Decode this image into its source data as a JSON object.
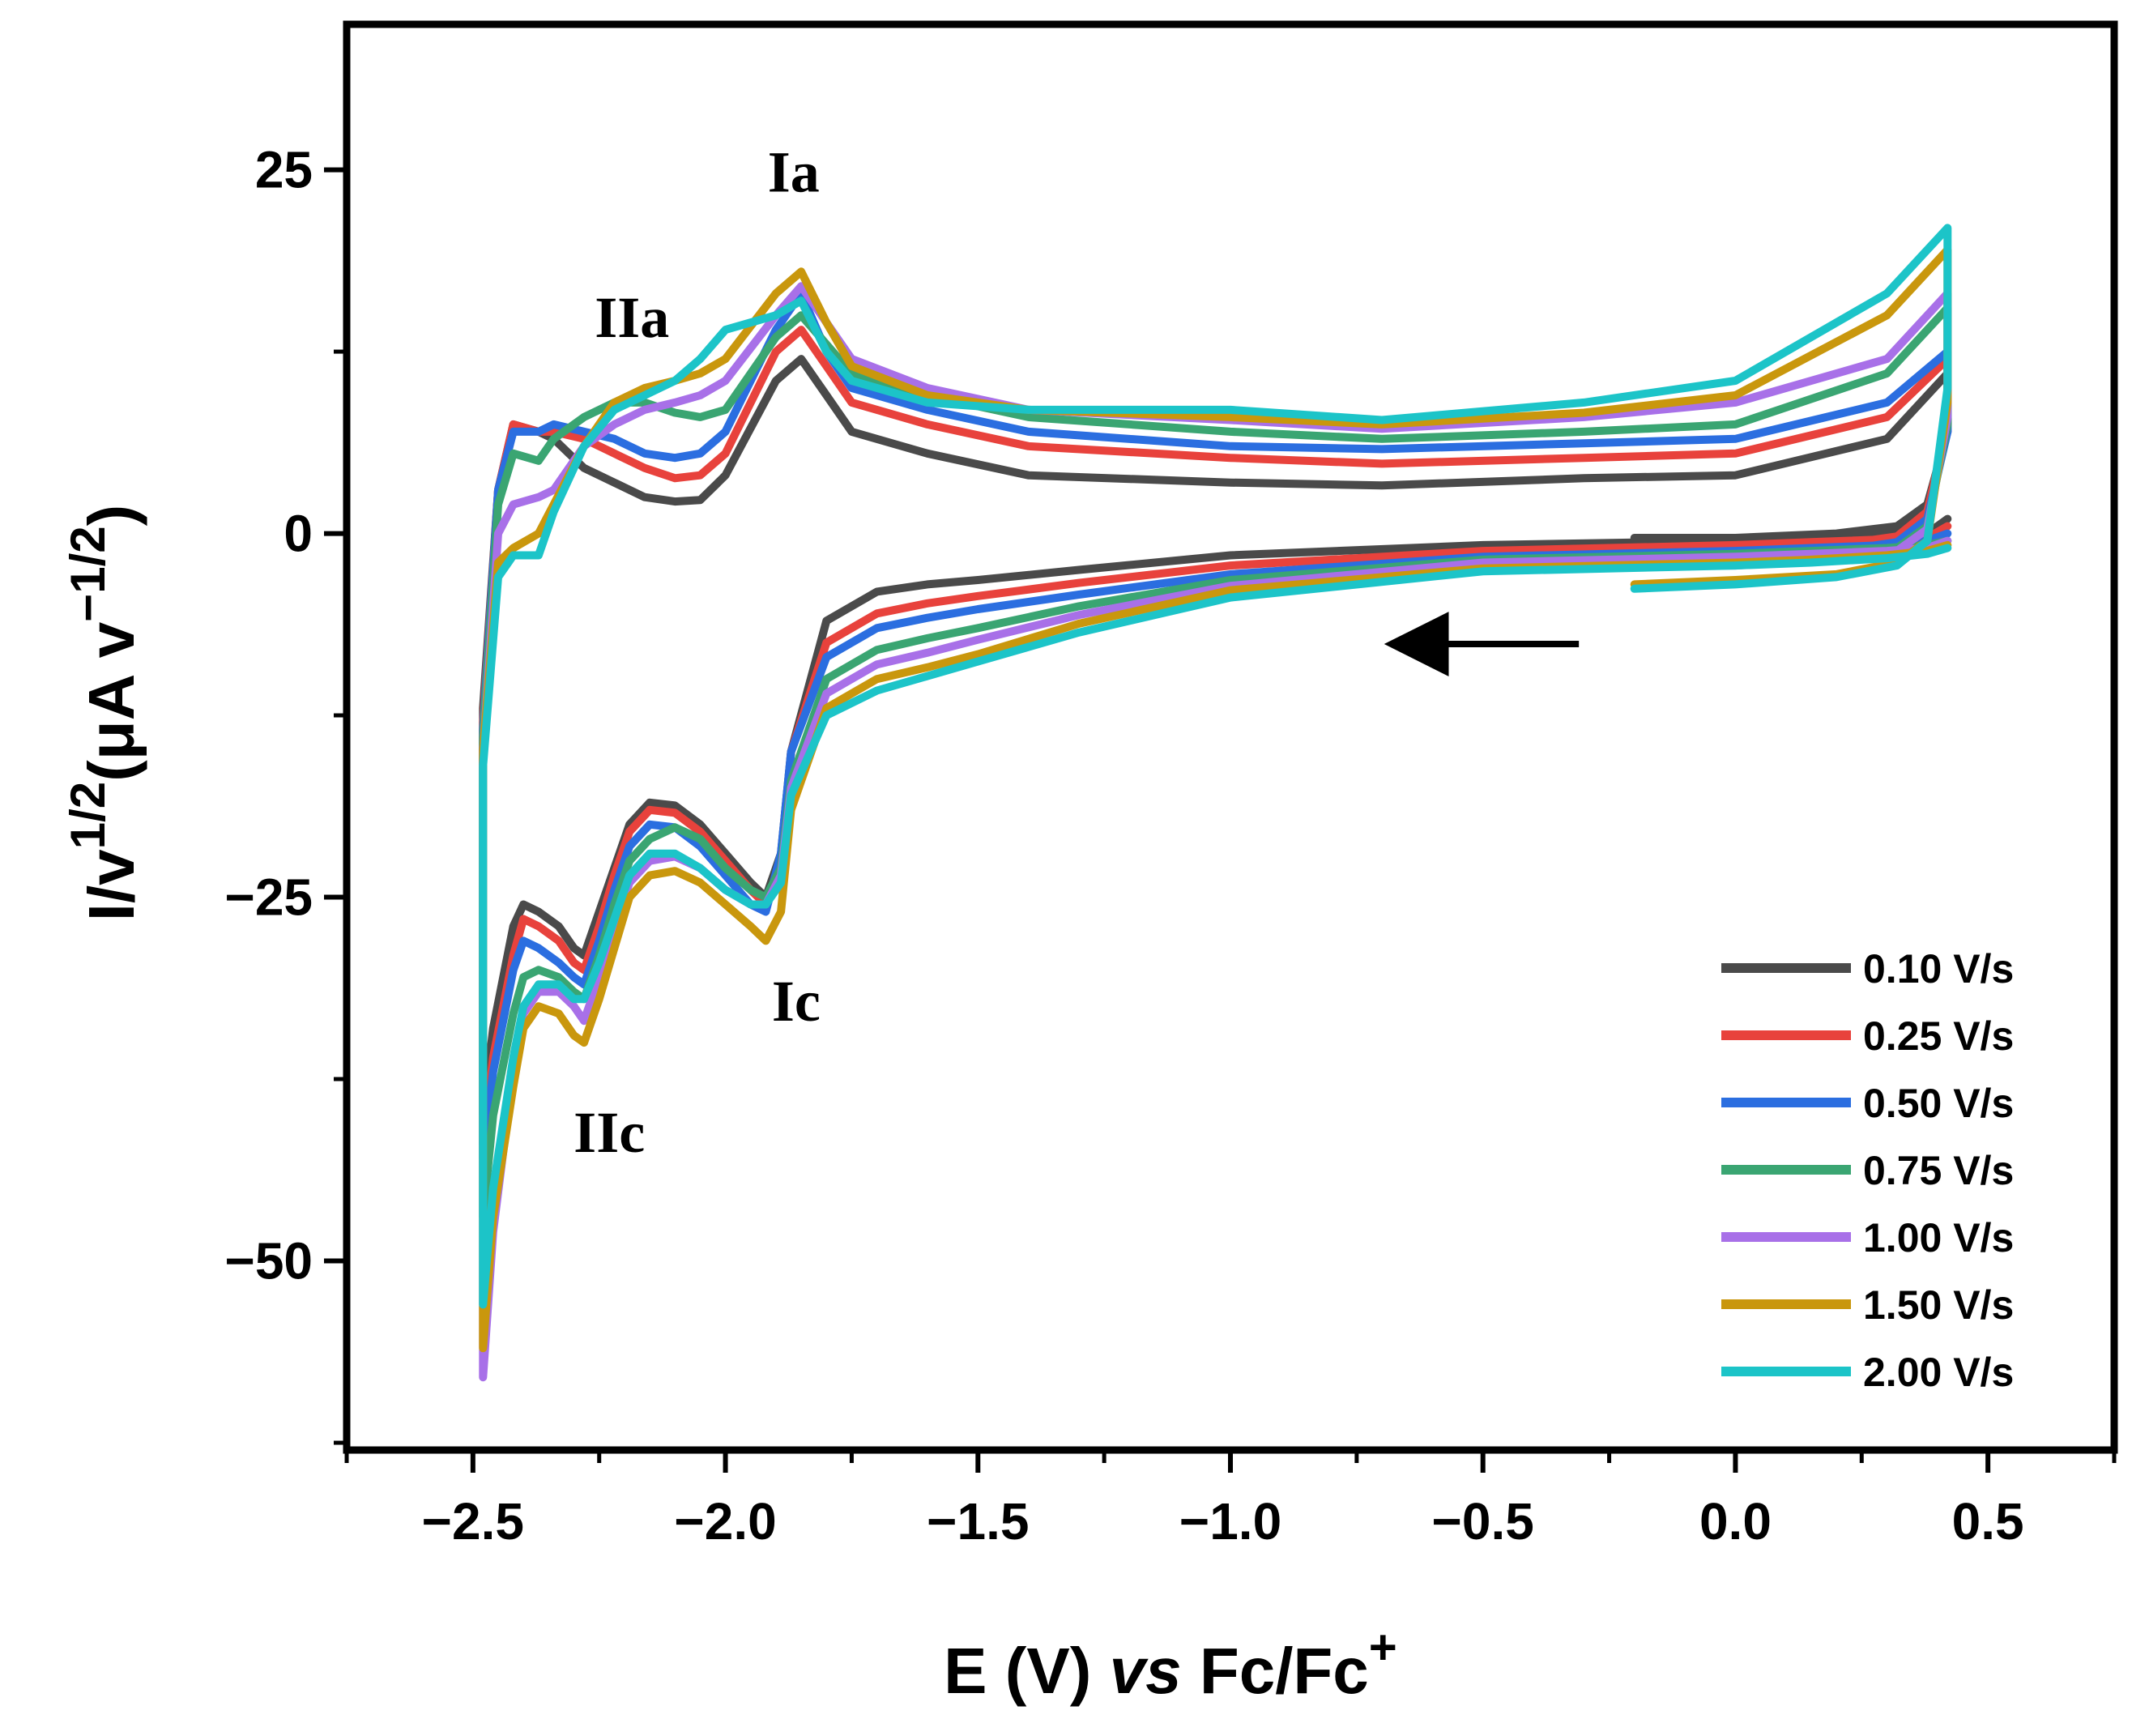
{
  "chart_data": {
    "type": "line",
    "xlabel": "E (V) vs Fc/Fc+",
    "ylabel": "I/v1/2(μA v−1/2)",
    "xlabel_parts": {
      "main": "E (V) ",
      "italic": "vs",
      "rest": " Fc/Fc",
      "sup": "+"
    },
    "ylabel_parts": {
      "a": "I/v",
      "a_sup": "1/2",
      "b": "(μA v",
      "b_sup": "−1/2",
      "c": ")"
    },
    "xlim": [
      -2.75,
      0.75
    ],
    "ylim": [
      -63,
      35
    ],
    "x_ticks": [
      {
        "value": -2.5,
        "label": "−2.5"
      },
      {
        "value": -2.0,
        "label": "−2.0"
      },
      {
        "value": -1.5,
        "label": "−1.5"
      },
      {
        "value": -1.0,
        "label": "−1.0"
      },
      {
        "value": -0.5,
        "label": "−0.5"
      },
      {
        "value": 0.0,
        "label": "0.0"
      },
      {
        "value": 0.5,
        "label": "0.5"
      }
    ],
    "y_ticks": [
      {
        "value": 25,
        "label": "25"
      },
      {
        "value": 0,
        "label": "0"
      },
      {
        "value": -25,
        "label": "−25"
      },
      {
        "value": -50,
        "label": "−50"
      }
    ],
    "x_minor_step": 0.25,
    "y_minor_step": 12.5,
    "legend_position": "bottom-right",
    "annotations": [
      {
        "text": "Ia",
        "x": -1.865,
        "y": 23.5
      },
      {
        "text": "IIa",
        "x": -2.185,
        "y": 13.5
      },
      {
        "text": "Ic",
        "x": -1.86,
        "y": -33.5
      },
      {
        "text": "IIc",
        "x": -2.23,
        "y": -42.5
      }
    ],
    "arrow": {
      "x_from": -0.31,
      "x_to": -0.67,
      "y": -7.6,
      "direction": "left"
    },
    "series": [
      {
        "name": "0.10 V/s",
        "color": "#4a4a4a",
        "x": [
          -0.2,
          0.0,
          0.2,
          0.32,
          0.38,
          0.42,
          0.42,
          0.3,
          0.0,
          -0.3,
          -0.7,
          -1.0,
          -1.4,
          -1.6,
          -1.75,
          -1.8,
          -1.85,
          -1.9,
          -2.0,
          -2.05,
          -2.1,
          -2.16,
          -2.22,
          -2.28,
          -2.34,
          -2.37,
          -2.42,
          -2.45,
          -2.48,
          -2.48,
          -2.46,
          -2.42,
          -2.4,
          -2.37,
          -2.33,
          -2.3,
          -2.28,
          -2.25,
          -2.22,
          -2.19,
          -2.15,
          -2.1,
          -2.05,
          -2.0,
          -1.95,
          -1.92,
          -1.89,
          -1.87,
          -1.8,
          -1.7,
          -1.6,
          -1.5,
          -1.3,
          -1.0,
          -0.5,
          0.0,
          0.15,
          0.3,
          0.38,
          0.42
        ],
        "y": [
          -0.3,
          -0.3,
          0.0,
          0.5,
          2.0,
          7.0,
          11.0,
          6.5,
          4.0,
          3.8,
          3.3,
          3.5,
          4.0,
          5.5,
          7.0,
          9.5,
          12.0,
          10.5,
          4.0,
          2.3,
          2.2,
          2.5,
          3.5,
          4.5,
          6.5,
          7.0,
          7.5,
          3.0,
          -12.0,
          -40.0,
          -34.0,
          -27.0,
          -25.5,
          -26.0,
          -27.0,
          -28.5,
          -29.0,
          -26.0,
          -23.0,
          -20.0,
          -18.5,
          -18.7,
          -20.0,
          -22.0,
          -24.0,
          -25.0,
          -22.0,
          -15.0,
          -6.0,
          -4.0,
          -3.5,
          -3.2,
          -2.5,
          -1.5,
          -0.8,
          -0.5,
          -0.3,
          0.0,
          0.0,
          1.0
        ]
      },
      {
        "name": "0.25 V/s",
        "color": "#e8423c",
        "x": [
          -0.2,
          0.0,
          0.2,
          0.32,
          0.38,
          0.42,
          0.42,
          0.3,
          0.0,
          -0.3,
          -0.7,
          -1.0,
          -1.4,
          -1.6,
          -1.75,
          -1.8,
          -1.85,
          -1.9,
          -2.0,
          -2.05,
          -2.1,
          -2.16,
          -2.22,
          -2.28,
          -2.34,
          -2.37,
          -2.42,
          -2.45,
          -2.48,
          -2.48,
          -2.46,
          -2.42,
          -2.4,
          -2.37,
          -2.33,
          -2.3,
          -2.28,
          -2.25,
          -2.22,
          -2.19,
          -2.15,
          -2.1,
          -2.05,
          -2.0,
          -1.95,
          -1.92,
          -1.89,
          -1.87,
          -1.8,
          -1.7,
          -1.6,
          -1.5,
          -1.3,
          -1.0,
          -0.5,
          0.0,
          0.15,
          0.3,
          0.38,
          0.42
        ],
        "y": [
          -1.0,
          -1.0,
          -0.8,
          -0.2,
          1.5,
          7.5,
          12.0,
          8.0,
          5.5,
          5.2,
          4.8,
          5.2,
          6.0,
          7.5,
          9.0,
          11.5,
          14.0,
          12.5,
          5.5,
          4.0,
          3.8,
          4.5,
          5.5,
          6.5,
          7.0,
          7.0,
          7.5,
          3.0,
          -13.0,
          -42.0,
          -36.0,
          -29.0,
          -26.5,
          -27.0,
          -28.0,
          -29.5,
          -30.0,
          -27.0,
          -23.5,
          -20.5,
          -19.0,
          -19.2,
          -20.5,
          -22.5,
          -24.5,
          -25.5,
          -22.5,
          -15.0,
          -7.5,
          -5.5,
          -4.8,
          -4.3,
          -3.4,
          -2.2,
          -1.2,
          -0.8,
          -0.6,
          -0.4,
          -0.3,
          0.5
        ]
      },
      {
        "name": "0.50 V/s",
        "color": "#2b6ee0",
        "x": [
          -0.2,
          0.0,
          0.2,
          0.32,
          0.38,
          0.42,
          0.42,
          0.3,
          0.0,
          -0.3,
          -0.7,
          -1.0,
          -1.4,
          -1.6,
          -1.75,
          -1.8,
          -1.85,
          -1.9,
          -2.0,
          -2.05,
          -2.1,
          -2.16,
          -2.22,
          -2.28,
          -2.34,
          -2.37,
          -2.42,
          -2.45,
          -2.48,
          -2.48,
          -2.46,
          -2.42,
          -2.4,
          -2.37,
          -2.33,
          -2.3,
          -2.28,
          -2.25,
          -2.22,
          -2.19,
          -2.15,
          -2.1,
          -2.05,
          -2.0,
          -1.95,
          -1.92,
          -1.89,
          -1.87,
          -1.8,
          -1.7,
          -1.6,
          -1.5,
          -1.3,
          -1.0,
          -0.5,
          0.0,
          0.15,
          0.3,
          0.38,
          0.42
        ],
        "y": [
          -1.5,
          -1.5,
          -1.2,
          -0.6,
          1.0,
          7.0,
          12.5,
          9.0,
          6.5,
          6.2,
          5.8,
          6.0,
          7.0,
          8.5,
          10.0,
          12.5,
          16.5,
          14.0,
          7.0,
          5.5,
          5.2,
          5.5,
          6.5,
          7.0,
          7.5,
          7.0,
          7.0,
          3.0,
          -13.5,
          -43.0,
          -37.0,
          -30.0,
          -28.0,
          -28.5,
          -29.5,
          -30.5,
          -31.0,
          -28.0,
          -24.5,
          -21.5,
          -20.0,
          -20.2,
          -21.5,
          -23.5,
          -25.5,
          -26.0,
          -22.0,
          -15.0,
          -8.5,
          -6.5,
          -5.8,
          -5.2,
          -4.2,
          -2.8,
          -1.6,
          -1.2,
          -1.0,
          -0.8,
          -0.5,
          0.0
        ]
      },
      {
        "name": "0.75 V/s",
        "color": "#3aa572",
        "x": [
          -0.2,
          0.0,
          0.2,
          0.32,
          0.38,
          0.42,
          0.42,
          0.3,
          0.0,
          -0.3,
          -0.7,
          -1.0,
          -1.4,
          -1.6,
          -1.75,
          -1.8,
          -1.85,
          -1.9,
          -2.0,
          -2.05,
          -2.1,
          -2.16,
          -2.22,
          -2.28,
          -2.34,
          -2.37,
          -2.42,
          -2.45,
          -2.48,
          -2.48,
          -2.46,
          -2.42,
          -2.4,
          -2.37,
          -2.33,
          -2.3,
          -2.28,
          -2.25,
          -2.22,
          -2.19,
          -2.15,
          -2.1,
          -2.05,
          -2.0,
          -1.95,
          -1.92,
          -1.89,
          -1.87,
          -1.8,
          -1.7,
          -1.6,
          -1.5,
          -1.3,
          -1.0,
          -0.5,
          0.0,
          0.15,
          0.3,
          0.38,
          0.42
        ],
        "y": [
          -2.0,
          -2.0,
          -1.6,
          -1.0,
          0.5,
          7.5,
          15.5,
          11.0,
          7.5,
          7.0,
          6.5,
          7.0,
          8.0,
          9.5,
          11.0,
          13.0,
          15.0,
          13.5,
          8.5,
          8.0,
          8.3,
          9.0,
          9.0,
          8.0,
          6.5,
          5.0,
          5.5,
          2.0,
          -14.0,
          -47.0,
          -40.0,
          -33.0,
          -30.5,
          -30.0,
          -30.5,
          -31.5,
          -32.0,
          -29.0,
          -25.5,
          -22.5,
          -21.0,
          -20.2,
          -21.0,
          -23.0,
          -24.5,
          -25.0,
          -23.0,
          -17.0,
          -10.0,
          -8.0,
          -7.2,
          -6.5,
          -5.0,
          -3.2,
          -1.8,
          -1.4,
          -1.2,
          -1.0,
          -0.8,
          -0.5
        ]
      },
      {
        "name": "1.00 V/s",
        "color": "#a870e8",
        "x": [
          -0.2,
          0.0,
          0.2,
          0.32,
          0.38,
          0.42,
          0.42,
          0.3,
          0.0,
          -0.3,
          -0.7,
          -1.0,
          -1.4,
          -1.6,
          -1.75,
          -1.8,
          -1.85,
          -1.9,
          -2.0,
          -2.05,
          -2.1,
          -2.16,
          -2.22,
          -2.28,
          -2.34,
          -2.37,
          -2.42,
          -2.45,
          -2.48,
          -2.48,
          -2.46,
          -2.42,
          -2.4,
          -2.37,
          -2.33,
          -2.3,
          -2.28,
          -2.25,
          -2.22,
          -2.19,
          -2.15,
          -2.1,
          -2.05,
          -2.0,
          -1.95,
          -1.92,
          -1.89,
          -1.87,
          -1.8,
          -1.7,
          -1.6,
          -1.5,
          -1.3,
          -1.0,
          -0.5,
          0.0,
          0.15,
          0.3,
          0.38,
          0.42
        ],
        "y": [
          -2.2,
          -2.2,
          -1.8,
          -1.2,
          0.3,
          8.0,
          16.5,
          12.0,
          9.0,
          8.0,
          7.2,
          7.8,
          8.5,
          10.0,
          12.0,
          14.5,
          17.0,
          15.0,
          10.5,
          9.5,
          9.0,
          8.5,
          7.5,
          6.0,
          3.0,
          2.5,
          2.0,
          0.0,
          -15.0,
          -58.0,
          -48.0,
          -37.0,
          -33.0,
          -31.5,
          -31.5,
          -32.5,
          -33.5,
          -30.5,
          -27.0,
          -24.0,
          -22.5,
          -22.2,
          -23.0,
          -24.5,
          -25.5,
          -25.5,
          -23.5,
          -17.5,
          -11.0,
          -9.0,
          -8.2,
          -7.3,
          -5.6,
          -3.6,
          -2.0,
          -1.6,
          -1.4,
          -1.2,
          -1.0,
          -0.5
        ]
      },
      {
        "name": "1.50 V/s",
        "color": "#c9970d",
        "x": [
          -0.2,
          0.0,
          0.2,
          0.32,
          0.38,
          0.42,
          0.42,
          0.3,
          0.0,
          -0.3,
          -0.7,
          -1.0,
          -1.4,
          -1.6,
          -1.75,
          -1.8,
          -1.85,
          -1.9,
          -2.0,
          -2.05,
          -2.1,
          -2.16,
          -2.22,
          -2.28,
          -2.34,
          -2.37,
          -2.42,
          -2.45,
          -2.48,
          -2.48,
          -2.46,
          -2.42,
          -2.4,
          -2.37,
          -2.33,
          -2.3,
          -2.28,
          -2.25,
          -2.22,
          -2.19,
          -2.15,
          -2.1,
          -2.05,
          -2.0,
          -1.95,
          -1.92,
          -1.89,
          -1.87,
          -1.8,
          -1.7,
          -1.6,
          -1.5,
          -1.3,
          -1.0,
          -0.5,
          0.0,
          0.15,
          0.3,
          0.38,
          0.42
        ],
        "y": [
          -3.5,
          -3.2,
          -2.8,
          -2.0,
          -0.5,
          9.0,
          19.5,
          15.0,
          9.5,
          8.3,
          7.5,
          8.0,
          8.5,
          9.5,
          11.5,
          14.5,
          18.0,
          16.5,
          12.0,
          11.0,
          10.5,
          10.0,
          9.0,
          6.0,
          2.0,
          0.0,
          -1.0,
          -2.0,
          -15.0,
          -56.0,
          -47.0,
          -38.0,
          -34.0,
          -32.5,
          -33.0,
          -34.5,
          -35.0,
          -32.0,
          -28.5,
          -25.0,
          -23.5,
          -23.2,
          -24.0,
          -25.5,
          -27.0,
          -28.0,
          -26.0,
          -19.0,
          -12.0,
          -10.0,
          -9.2,
          -8.3,
          -6.2,
          -3.9,
          -2.4,
          -2.0,
          -1.8,
          -1.5,
          -1.2,
          -0.8
        ]
      },
      {
        "name": "2.00 V/s",
        "color": "#1cc4c8",
        "x": [
          -0.2,
          0.0,
          0.2,
          0.32,
          0.38,
          0.42,
          0.42,
          0.3,
          0.0,
          -0.3,
          -0.7,
          -1.0,
          -1.4,
          -1.6,
          -1.75,
          -1.8,
          -1.85,
          -1.9,
          -2.0,
          -2.05,
          -2.1,
          -2.16,
          -2.22,
          -2.28,
          -2.34,
          -2.37,
          -2.42,
          -2.45,
          -2.48,
          -2.48,
          -2.46,
          -2.42,
          -2.4,
          -2.37,
          -2.33,
          -2.3,
          -2.28,
          -2.25,
          -2.22,
          -2.19,
          -2.15,
          -2.1,
          -2.05,
          -2.0,
          -1.95,
          -1.92,
          -1.89,
          -1.87,
          -1.8,
          -1.7,
          -1.6,
          -1.5,
          -1.3,
          -1.0,
          -0.5,
          0.0,
          0.15,
          0.3,
          0.38,
          0.42
        ],
        "y": [
          -3.8,
          -3.5,
          -3.0,
          -2.2,
          -0.5,
          10.0,
          21.0,
          16.5,
          10.5,
          9.0,
          7.8,
          8.5,
          8.5,
          9.0,
          10.5,
          12.5,
          16.0,
          15.0,
          14.0,
          12.0,
          10.5,
          9.5,
          8.5,
          6.0,
          1.5,
          -1.5,
          -1.5,
          -3.0,
          -16.0,
          -53.0,
          -45.0,
          -36.0,
          -32.5,
          -31.0,
          -31.0,
          -32.0,
          -32.0,
          -29.5,
          -26.5,
          -23.5,
          -22.0,
          -22.0,
          -23.0,
          -24.5,
          -25.5,
          -25.5,
          -24.0,
          -18.0,
          -12.5,
          -10.8,
          -9.8,
          -8.8,
          -6.8,
          -4.4,
          -2.6,
          -2.2,
          -2.0,
          -1.7,
          -1.4,
          -1.0
        ]
      }
    ]
  }
}
